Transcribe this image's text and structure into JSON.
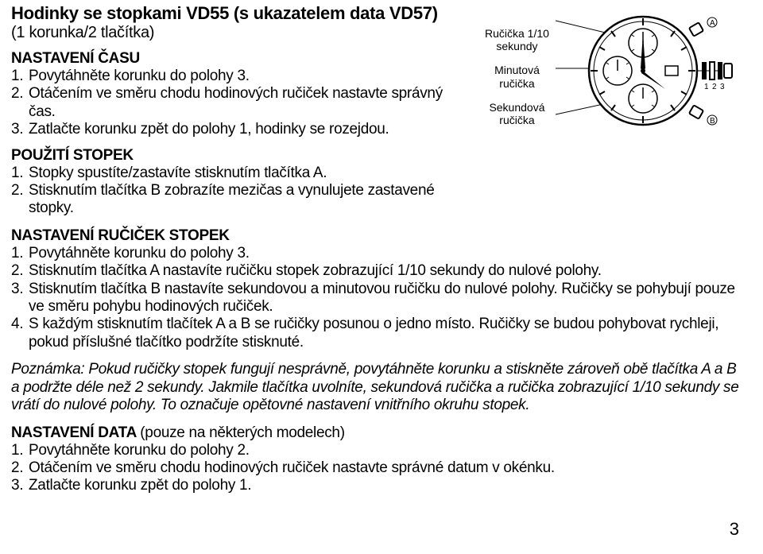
{
  "title": "Hodinky se stopkami VD55 (s ukazatelem data VD57)",
  "subtitle": "(1 korunka/2 tlačítka)",
  "diagram_labels": {
    "tenth": "Ručička 1/10\nsekundy",
    "minute": "Minutová\nručička",
    "second": "Sekundová\nručička"
  },
  "sections": {
    "time": {
      "head": "NASTAVENÍ ČASU",
      "items": [
        {
          "n": "1.",
          "t": "Povytáhněte korunku do polohy 3."
        },
        {
          "n": "2.",
          "t": "Otáčením ve směru chodu hodinových ručiček nastavte správný čas."
        },
        {
          "n": "3.",
          "t": "Zatlačte korunku zpět do polohy 1, hodinky se rozejdou."
        }
      ]
    },
    "stop": {
      "head": "POUŽITÍ STOPEK",
      "items": [
        {
          "n": "1.",
          "t": "Stopky spustíte/zastavíte stisknutím tlačítka A."
        },
        {
          "n": "2.",
          "t": "Stisknutím tlačítka B zobrazíte mezičas a vynulujete zastavené stopky."
        }
      ]
    },
    "hands": {
      "head": "NASTAVENÍ RUČIČEK STOPEK",
      "items": [
        {
          "n": "1.",
          "t": "Povytáhněte korunku do polohy 3."
        },
        {
          "n": "2.",
          "t": "Stisknutím tlačítka A nastavíte ručičku stopek zobrazující 1/10 sekundy do nulové polohy."
        },
        {
          "n": "3.",
          "t": "Stisknutím tlačítka B nastavíte sekundovou a minutovou ručičku do nulové polohy. Ručičky se pohybují pouze ve směru pohybu hodinových ručiček."
        },
        {
          "n": "4.",
          "t": "S každým stisknutím tlačítek A a B se ručičky posunou o jedno místo. Ručičky se budou pohybovat rychleji, pokud příslušné tlačítko podržíte stisknuté."
        }
      ]
    },
    "date": {
      "head": "NASTAVENÍ DATA",
      "head_suffix": "(pouze na některých modelech)",
      "items": [
        {
          "n": "1.",
          "t": "Povytáhněte korunku do polohy 2."
        },
        {
          "n": "2.",
          "t": "Otáčením ve směru chodu hodinových ručiček nastavte správné datum v okénku."
        },
        {
          "n": "3.",
          "t": "Zatlačte korunku zpět do polohy 1."
        }
      ]
    }
  },
  "note": "Poznámka: Pokud ručičky stopek fungují nesprávně, povytáhněte korunku a stiskněte zároveň obě tlačítka A a B a podržte déle než 2 sekundy. Jakmile tlačítka uvolníte, sekundová ručička a ručička zobrazující 1/10 sekundy se vrátí do nulové polohy. To označuje opětovné nastavení vnitřního okruhu stopek.",
  "page_num": "3",
  "crown_nums": [
    "1",
    "2",
    "3"
  ],
  "crown_letters": {
    "a": "A",
    "b": "B"
  }
}
